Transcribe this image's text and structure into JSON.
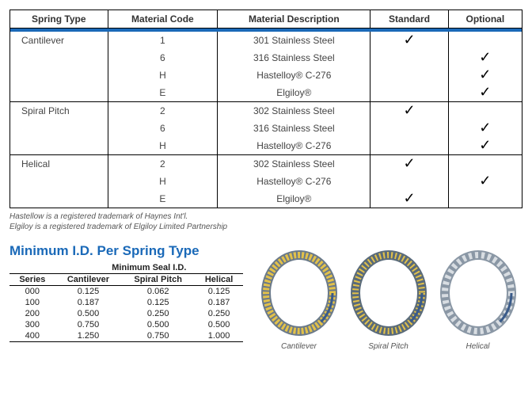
{
  "main_table": {
    "accent_color": "#1a69b8",
    "headers": [
      "Spring Type",
      "Material Code",
      "Material Description",
      "Standard",
      "Optional"
    ],
    "groups": [
      {
        "spring_type": "Cantilever",
        "rows": [
          {
            "code": "1",
            "desc": "301 Stainless Steel",
            "std": true,
            "opt": false
          },
          {
            "code": "6",
            "desc": "316 Stainless Steel",
            "std": false,
            "opt": true
          },
          {
            "code": "H",
            "desc": "Hastelloy® C-276",
            "std": false,
            "opt": true
          },
          {
            "code": "E",
            "desc": "Elgiloy®",
            "std": false,
            "opt": true
          }
        ]
      },
      {
        "spring_type": "Spiral Pitch",
        "rows": [
          {
            "code": "2",
            "desc": "302 Stainless Steel",
            "std": true,
            "opt": false
          },
          {
            "code": "6",
            "desc": "316 Stainless Steel",
            "std": false,
            "opt": true
          },
          {
            "code": "H",
            "desc": "Hastelloy® C-276",
            "std": false,
            "opt": true
          }
        ]
      },
      {
        "spring_type": "Helical",
        "rows": [
          {
            "code": "2",
            "desc": "302 Stainless Steel",
            "std": true,
            "opt": false
          },
          {
            "code": "H",
            "desc": "Hastelloy® C-276",
            "std": false,
            "opt": true
          },
          {
            "code": "E",
            "desc": "Elgiloy®",
            "std": true,
            "opt": false
          }
        ]
      }
    ]
  },
  "footnotes": [
    "Hastellow is a registered trademark of Haynes Int'l.",
    "Elgiloy is a registered trademark of Elgiloy Limited Partnership"
  ],
  "mini_table": {
    "title": "Minimum I.D. Per Spring Type",
    "superheader": "Minimum Seal I.D.",
    "columns": [
      "Series",
      "Cantilever",
      "Spiral Pitch",
      "Helical"
    ],
    "rows": [
      [
        "000",
        "0.125",
        "0.062",
        "0.125"
      ],
      [
        "100",
        "0.187",
        "0.125",
        "0.187"
      ],
      [
        "200",
        "0.500",
        "0.250",
        "0.250"
      ],
      [
        "300",
        "0.750",
        "0.500",
        "0.500"
      ],
      [
        "400",
        "1.250",
        "0.750",
        "1.000"
      ]
    ]
  },
  "rings": {
    "items": [
      {
        "label": "Cantilever",
        "stroke": "#6b7a8a",
        "fill": "#e2c14a",
        "dash": "3 2"
      },
      {
        "label": "Spiral Pitch",
        "stroke": "#5a6b7a",
        "fill": "#e2c14a",
        "dash": "2 3"
      },
      {
        "label": "Helical",
        "stroke": "#8a97a5",
        "fill": "#d8dde2",
        "dash": "4 4"
      }
    ]
  }
}
